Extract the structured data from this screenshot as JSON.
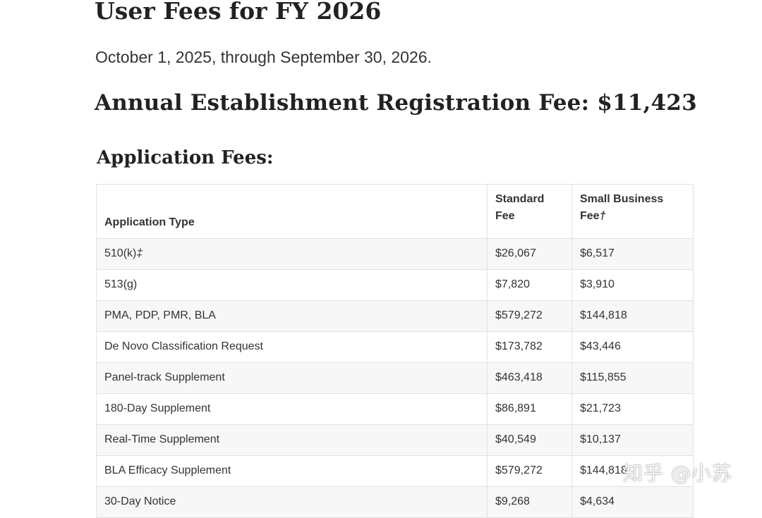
{
  "page": {
    "title": "User Fees for FY 2026",
    "date_range": "October 1, 2025, through September 30, 2026.",
    "annual_fee_heading": "Annual Establishment Registration Fee: $11,423",
    "section_heading": "Application Fees:"
  },
  "table": {
    "headers": {
      "application_type": "Application Type",
      "standard_fee": "Standard Fee",
      "small_business_fee": "Small Business Fee",
      "small_business_fee_mark": "†"
    },
    "rows": [
      {
        "type": "510(k)",
        "type_mark": "‡",
        "standard": "$26,067",
        "small": "$6,517"
      },
      {
        "type": "513(g)",
        "type_mark": "",
        "standard": "$7,820",
        "small": "$3,910"
      },
      {
        "type": "PMA, PDP, PMR, BLA",
        "type_mark": "",
        "standard": "$579,272",
        "small": "$144,818"
      },
      {
        "type": "De Novo Classification Request",
        "type_mark": "",
        "standard": "$173,782",
        "small": "$43,446"
      },
      {
        "type": "Panel-track Supplement",
        "type_mark": "",
        "standard": "$463,418",
        "small": "$115,855"
      },
      {
        "type": "180-Day Supplement",
        "type_mark": "",
        "standard": "$86,891",
        "small": "$21,723"
      },
      {
        "type": "Real-Time Supplement",
        "type_mark": "",
        "standard": "$40,549",
        "small": "$10,137"
      },
      {
        "type": "BLA Efficacy Supplement",
        "type_mark": "",
        "standard": "$579,272",
        "small": "$144,818"
      },
      {
        "type": "30-Day Notice",
        "type_mark": "",
        "standard": "$9,268",
        "small": "$4,634"
      }
    ]
  },
  "watermark": {
    "text": "知乎 @小苏"
  }
}
